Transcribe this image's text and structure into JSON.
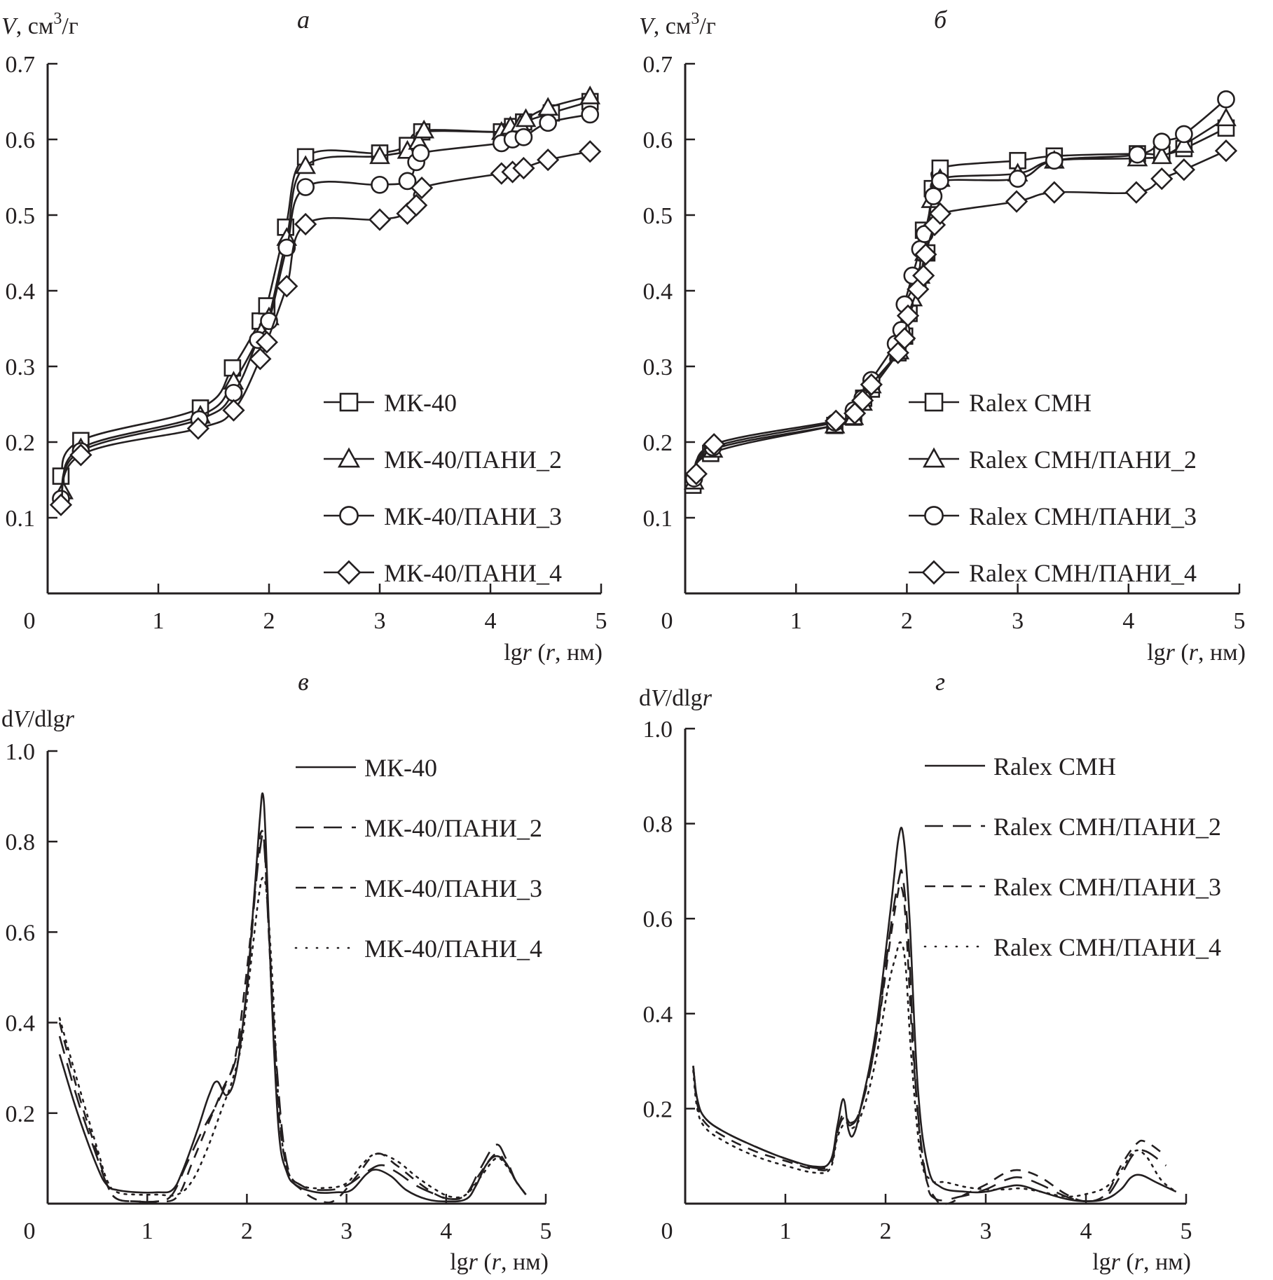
{
  "chart_data": [
    {
      "panel": "а",
      "type": "line",
      "ylabel": "V, см³/г",
      "xlabel": "lgr (r, нм)",
      "xlim": [
        0,
        5
      ],
      "ylim": [
        0,
        0.7
      ],
      "xticks": [
        0,
        1,
        2,
        3,
        4,
        5
      ],
      "yticks": [
        0.1,
        0.2,
        0.3,
        0.4,
        0.5,
        0.6,
        0.7
      ],
      "legend_position": "bottom-right",
      "markers": true,
      "series": [
        {
          "name": "МК-40",
          "marker": "square",
          "x": [
            0.12,
            0.3,
            1.38,
            1.67,
            1.92,
            1.98,
            2.15,
            2.33,
            3.0,
            3.25,
            3.38,
            4.1,
            4.2,
            4.3,
            4.55,
            4.9
          ],
          "y": [
            0.155,
            0.202,
            0.245,
            0.298,
            0.36,
            0.38,
            0.484,
            0.577,
            0.582,
            0.592,
            0.61,
            0.61,
            0.617,
            0.623,
            0.635,
            0.65
          ]
        },
        {
          "name": "МК-40/ПАНИ_2",
          "marker": "triangle",
          "x": [
            0.14,
            0.3,
            1.38,
            1.68,
            1.93,
            2.0,
            2.16,
            2.33,
            3.0,
            3.25,
            3.35,
            3.4,
            4.1,
            4.18,
            4.27,
            4.32,
            4.52,
            4.9
          ],
          "y": [
            0.135,
            0.192,
            0.235,
            0.28,
            0.345,
            0.365,
            0.47,
            0.565,
            0.578,
            0.585,
            0.597,
            0.612,
            0.61,
            0.617,
            0.62,
            0.627,
            0.642,
            0.657
          ]
        },
        {
          "name": "МК-40/ПАНИ_3",
          "marker": "circle",
          "x": [
            0.12,
            0.3,
            1.37,
            1.68,
            1.9,
            2.0,
            2.16,
            2.33,
            3.0,
            3.25,
            3.33,
            3.37,
            4.1,
            4.2,
            4.3,
            4.52,
            4.9
          ],
          "y": [
            0.125,
            0.188,
            0.23,
            0.265,
            0.335,
            0.36,
            0.457,
            0.537,
            0.54,
            0.545,
            0.57,
            0.582,
            0.595,
            0.6,
            0.603,
            0.622,
            0.633
          ]
        },
        {
          "name": "МК-40/ПАНИ_4",
          "marker": "diamond",
          "x": [
            0.12,
            0.3,
            1.36,
            1.68,
            1.92,
            1.98,
            2.16,
            2.33,
            3.0,
            3.25,
            3.33,
            3.38,
            4.1,
            4.2,
            4.3,
            4.52,
            4.9
          ],
          "y": [
            0.117,
            0.183,
            0.218,
            0.242,
            0.31,
            0.332,
            0.406,
            0.488,
            0.494,
            0.502,
            0.513,
            0.536,
            0.555,
            0.557,
            0.562,
            0.573,
            0.584
          ]
        }
      ]
    },
    {
      "panel": "б",
      "type": "line",
      "ylabel": "V, см³/г",
      "xlabel": "lgr (r, нм)",
      "xlim": [
        0,
        5
      ],
      "ylim": [
        0,
        0.7
      ],
      "xticks": [
        0,
        1,
        2,
        3,
        4,
        5
      ],
      "yticks": [
        0.1,
        0.2,
        0.3,
        0.4,
        0.5,
        0.6,
        0.7
      ],
      "legend_position": "bottom-right",
      "markers": true,
      "series": [
        {
          "name": "Ralex CMH",
          "marker": "square",
          "x": [
            0.07,
            0.23,
            1.35,
            1.52,
            1.61,
            1.68,
            1.92,
            1.98,
            2.02,
            2.1,
            2.15,
            2.18,
            2.23,
            2.3,
            3.0,
            3.33,
            4.08,
            4.3,
            4.5,
            4.88
          ],
          "y": [
            0.143,
            0.185,
            0.222,
            0.233,
            0.258,
            0.27,
            0.318,
            0.34,
            0.37,
            0.41,
            0.48,
            0.45,
            0.535,
            0.562,
            0.572,
            0.578,
            0.581,
            0.58,
            0.588,
            0.615
          ]
        },
        {
          "name": "Ralex CMH/ПАНИ_2",
          "marker": "triangle",
          "x": [
            0.08,
            0.25,
            1.35,
            1.52,
            1.6,
            1.68,
            1.93,
            1.98,
            2.05,
            2.12,
            2.16,
            2.22,
            2.3,
            3.0,
            3.33,
            4.08,
            4.3,
            4.5,
            4.88
          ],
          "y": [
            0.148,
            0.19,
            0.222,
            0.233,
            0.252,
            0.275,
            0.32,
            0.345,
            0.39,
            0.42,
            0.45,
            0.52,
            0.548,
            0.555,
            0.572,
            0.575,
            0.578,
            0.593,
            0.628
          ]
        },
        {
          "name": "Ralex CMH/ПАНИ_3",
          "marker": "circle",
          "x": [
            0.08,
            0.25,
            1.35,
            1.52,
            1.6,
            1.68,
            1.9,
            1.95,
            1.98,
            2.05,
            2.12,
            2.16,
            2.24,
            2.3,
            3.0,
            3.33,
            4.08,
            4.3,
            4.5,
            4.88
          ],
          "y": [
            0.152,
            0.193,
            0.226,
            0.242,
            0.258,
            0.282,
            0.33,
            0.348,
            0.382,
            0.42,
            0.455,
            0.475,
            0.525,
            0.545,
            0.548,
            0.572,
            0.58,
            0.597,
            0.607,
            0.653
          ]
        },
        {
          "name": "Ralex CMH/ПАНИ_4",
          "marker": "diamond",
          "x": [
            0.1,
            0.26,
            1.36,
            1.53,
            1.6,
            1.68,
            1.92,
            1.98,
            2.01,
            2.1,
            2.15,
            2.17,
            2.25,
            2.3,
            2.99,
            3.33,
            4.07,
            4.3,
            4.5,
            4.88
          ],
          "y": [
            0.158,
            0.197,
            0.228,
            0.238,
            0.255,
            0.276,
            0.318,
            0.337,
            0.367,
            0.402,
            0.42,
            0.448,
            0.487,
            0.502,
            0.518,
            0.53,
            0.53,
            0.548,
            0.56,
            0.585
          ]
        }
      ]
    },
    {
      "panel": "в",
      "type": "line",
      "ylabel": "dV/dlgr",
      "xlabel": "lgr (r, нм)",
      "xlim": [
        0,
        5
      ],
      "ylim": [
        0,
        1.0
      ],
      "xticks": [
        0,
        1,
        2,
        3,
        4,
        5
      ],
      "yticks": [
        0.2,
        0.4,
        0.6,
        0.8,
        1.0
      ],
      "legend_position": "top-right",
      "markers": false,
      "series": [
        {
          "name": "МК-40",
          "style": "solid",
          "color": "#231f20",
          "x": [
            0.12,
            0.3,
            0.5,
            0.6,
            0.7,
            0.9,
            1.1,
            1.25,
            1.35,
            1.5,
            1.62,
            1.7,
            1.8,
            1.9,
            2.0,
            2.08,
            2.13,
            2.16,
            2.19,
            2.25,
            2.32,
            2.4,
            2.5,
            2.7,
            2.9,
            3.05,
            3.2,
            3.3,
            3.45,
            3.6,
            3.8,
            4.0,
            4.2,
            4.3,
            4.4,
            4.5,
            4.6,
            4.7,
            4.8
          ],
          "y": [
            0.33,
            0.2,
            0.08,
            0.04,
            0.03,
            0.025,
            0.025,
            0.03,
            0.07,
            0.16,
            0.24,
            0.27,
            0.24,
            0.3,
            0.48,
            0.7,
            0.85,
            0.905,
            0.8,
            0.45,
            0.16,
            0.07,
            0.04,
            0.025,
            0.025,
            0.03,
            0.065,
            0.075,
            0.06,
            0.03,
            0.01,
            0.005,
            0.01,
            0.04,
            0.085,
            0.105,
            0.09,
            0.05,
            0.02
          ]
        },
        {
          "name": "МК-40/ПАНИ_2",
          "style": "long-dash",
          "color": "#939598",
          "x": [
            0.12,
            0.3,
            0.5,
            0.6,
            0.7,
            0.9,
            1.1,
            1.25,
            1.4,
            1.55,
            1.7,
            1.8,
            1.9,
            2.0,
            2.08,
            2.13,
            2.17,
            2.22,
            2.3,
            2.4,
            2.55,
            2.8,
            3.0,
            3.2,
            3.35,
            3.5,
            3.7,
            3.9,
            4.05,
            4.2,
            4.35,
            4.5,
            4.6,
            4.7,
            4.8
          ],
          "y": [
            0.37,
            0.23,
            0.1,
            0.04,
            0.01,
            0.005,
            0.005,
            0.02,
            0.09,
            0.16,
            0.22,
            0.27,
            0.33,
            0.47,
            0.68,
            0.78,
            0.8,
            0.6,
            0.3,
            0.09,
            0.04,
            0.03,
            0.04,
            0.07,
            0.085,
            0.07,
            0.04,
            0.02,
            0.01,
            0.02,
            0.08,
            0.13,
            0.1,
            0.05,
            0.02
          ]
        },
        {
          "name": "МК-40/ПАНИ_3",
          "style": "dash",
          "color": "#231f20",
          "x": [
            0.12,
            0.3,
            0.5,
            0.6,
            0.7,
            0.9,
            1.1,
            1.3,
            1.45,
            1.6,
            1.75,
            1.88,
            1.98,
            2.05,
            2.1,
            2.14,
            2.18,
            2.23,
            2.3,
            2.4,
            2.55,
            2.75,
            2.9,
            3.1,
            3.3,
            3.5,
            3.7,
            3.9,
            4.05,
            4.2,
            4.35,
            4.5,
            4.6,
            4.7,
            4.8
          ],
          "y": [
            0.4,
            0.25,
            0.11,
            0.04,
            0.01,
            0.005,
            0.005,
            0.015,
            0.09,
            0.17,
            0.25,
            0.32,
            0.48,
            0.62,
            0.74,
            0.82,
            0.78,
            0.55,
            0.25,
            0.08,
            0.03,
            0.005,
            0.01,
            0.06,
            0.11,
            0.085,
            0.05,
            0.02,
            0.01,
            0.02,
            0.07,
            0.11,
            0.09,
            0.05,
            0.02
          ]
        },
        {
          "name": "МК-40/ПАНИ_4",
          "style": "dot",
          "color": "#231f20",
          "x": [
            0.12,
            0.3,
            0.5,
            0.6,
            0.7,
            0.9,
            1.1,
            1.3,
            1.45,
            1.6,
            1.75,
            1.85,
            1.95,
            2.05,
            2.12,
            2.16,
            2.2,
            2.26,
            2.32,
            2.4,
            2.55,
            2.8,
            3.0,
            3.15,
            3.3,
            3.5,
            3.7,
            3.9,
            4.05,
            4.2,
            4.35,
            4.5,
            4.6,
            4.7,
            4.8
          ],
          "y": [
            0.41,
            0.27,
            0.12,
            0.05,
            0.025,
            0.02,
            0.02,
            0.02,
            0.05,
            0.12,
            0.21,
            0.27,
            0.36,
            0.55,
            0.68,
            0.72,
            0.68,
            0.48,
            0.22,
            0.08,
            0.04,
            0.035,
            0.045,
            0.085,
            0.11,
            0.095,
            0.06,
            0.03,
            0.015,
            0.02,
            0.06,
            0.1,
            0.085,
            0.05,
            0.02
          ]
        }
      ]
    },
    {
      "panel": "г",
      "type": "line",
      "ylabel": "dV/dlgr",
      "xlabel": "lgr (r, нм)",
      "xlim": [
        0,
        5
      ],
      "ylim": [
        0,
        1.0
      ],
      "xticks": [
        0,
        1,
        2,
        3,
        4,
        5
      ],
      "yticks": [
        0.2,
        0.4,
        0.6,
        0.8,
        1.0
      ],
      "legend_position": "top-right",
      "markers": false,
      "series": [
        {
          "name": "Ralex CMH",
          "style": "solid",
          "color": "#231f20",
          "x": [
            0.08,
            0.12,
            0.2,
            0.4,
            0.7,
            1.0,
            1.3,
            1.45,
            1.52,
            1.58,
            1.63,
            1.68,
            1.75,
            1.9,
            2.05,
            2.13,
            2.18,
            2.24,
            2.32,
            2.42,
            2.55,
            2.8,
            3.0,
            3.2,
            3.35,
            3.55,
            3.8,
            4.0,
            4.2,
            4.35,
            4.45,
            4.55,
            4.7,
            4.9
          ],
          "y": [
            0.29,
            0.22,
            0.18,
            0.15,
            0.12,
            0.095,
            0.078,
            0.09,
            0.165,
            0.22,
            0.155,
            0.145,
            0.2,
            0.36,
            0.62,
            0.77,
            0.77,
            0.6,
            0.25,
            0.08,
            0.035,
            0.025,
            0.025,
            0.035,
            0.038,
            0.025,
            0.01,
            0.005,
            0.01,
            0.03,
            0.055,
            0.06,
            0.045,
            0.025
          ]
        },
        {
          "name": "Ralex CMH/ПАНИ_2",
          "style": "long-dash",
          "color": "#939598",
          "x": [
            0.08,
            0.12,
            0.2,
            0.4,
            0.7,
            1.0,
            1.3,
            1.45,
            1.52,
            1.58,
            1.65,
            1.75,
            1.9,
            2.05,
            2.13,
            2.17,
            2.23,
            2.3,
            2.4,
            2.5,
            2.75,
            3.0,
            3.2,
            3.35,
            3.55,
            3.8,
            4.0,
            4.2,
            4.35,
            4.48,
            4.6,
            4.8
          ],
          "y": [
            0.29,
            0.22,
            0.18,
            0.15,
            0.12,
            0.095,
            0.075,
            0.085,
            0.15,
            0.19,
            0.17,
            0.2,
            0.34,
            0.58,
            0.68,
            0.69,
            0.55,
            0.25,
            0.06,
            0.01,
            0.015,
            0.03,
            0.05,
            0.055,
            0.04,
            0.015,
            0.005,
            0.015,
            0.06,
            0.105,
            0.11,
            0.08
          ]
        },
        {
          "name": "Ralex CMH/ПАНИ_3",
          "style": "dash",
          "color": "#231f20",
          "x": [
            0.08,
            0.12,
            0.2,
            0.4,
            0.7,
            1.0,
            1.3,
            1.45,
            1.52,
            1.58,
            1.65,
            1.75,
            1.9,
            2.05,
            2.12,
            2.15,
            2.2,
            2.28,
            2.38,
            2.5,
            2.62,
            2.8,
            3.0,
            3.2,
            3.35,
            3.55,
            3.8,
            4.0,
            4.2,
            4.35,
            4.5,
            4.6,
            4.8
          ],
          "y": [
            0.29,
            0.21,
            0.17,
            0.14,
            0.11,
            0.09,
            0.072,
            0.08,
            0.15,
            0.18,
            0.165,
            0.2,
            0.34,
            0.56,
            0.65,
            0.67,
            0.6,
            0.3,
            0.08,
            0.01,
            0.0,
            0.02,
            0.04,
            0.065,
            0.07,
            0.055,
            0.02,
            0.005,
            0.02,
            0.08,
            0.125,
            0.13,
            0.1
          ]
        },
        {
          "name": "Ralex CMH/ПАНИ_4",
          "style": "dot",
          "color": "#231f20",
          "x": [
            0.08,
            0.12,
            0.2,
            0.4,
            0.7,
            1.0,
            1.3,
            1.45,
            1.52,
            1.6,
            1.68,
            1.78,
            1.9,
            2.02,
            2.1,
            2.15,
            2.2,
            2.26,
            2.35,
            2.45,
            2.6,
            2.8,
            3.0,
            3.2,
            3.35,
            3.55,
            3.8,
            4.0,
            4.2,
            4.35,
            4.48,
            4.6,
            4.75,
            4.9
          ],
          "y": [
            0.28,
            0.2,
            0.16,
            0.13,
            0.1,
            0.08,
            0.065,
            0.075,
            0.14,
            0.17,
            0.16,
            0.2,
            0.3,
            0.45,
            0.52,
            0.55,
            0.5,
            0.3,
            0.1,
            0.05,
            0.045,
            0.035,
            0.03,
            0.03,
            0.032,
            0.025,
            0.015,
            0.02,
            0.035,
            0.07,
            0.11,
            0.1,
            0.05,
            0.025
          ]
        }
      ]
    }
  ],
  "axis_titles": {
    "v_units": "V, см³/г",
    "dv": "dV/dlgr",
    "x": "lgr (r, нм)"
  }
}
